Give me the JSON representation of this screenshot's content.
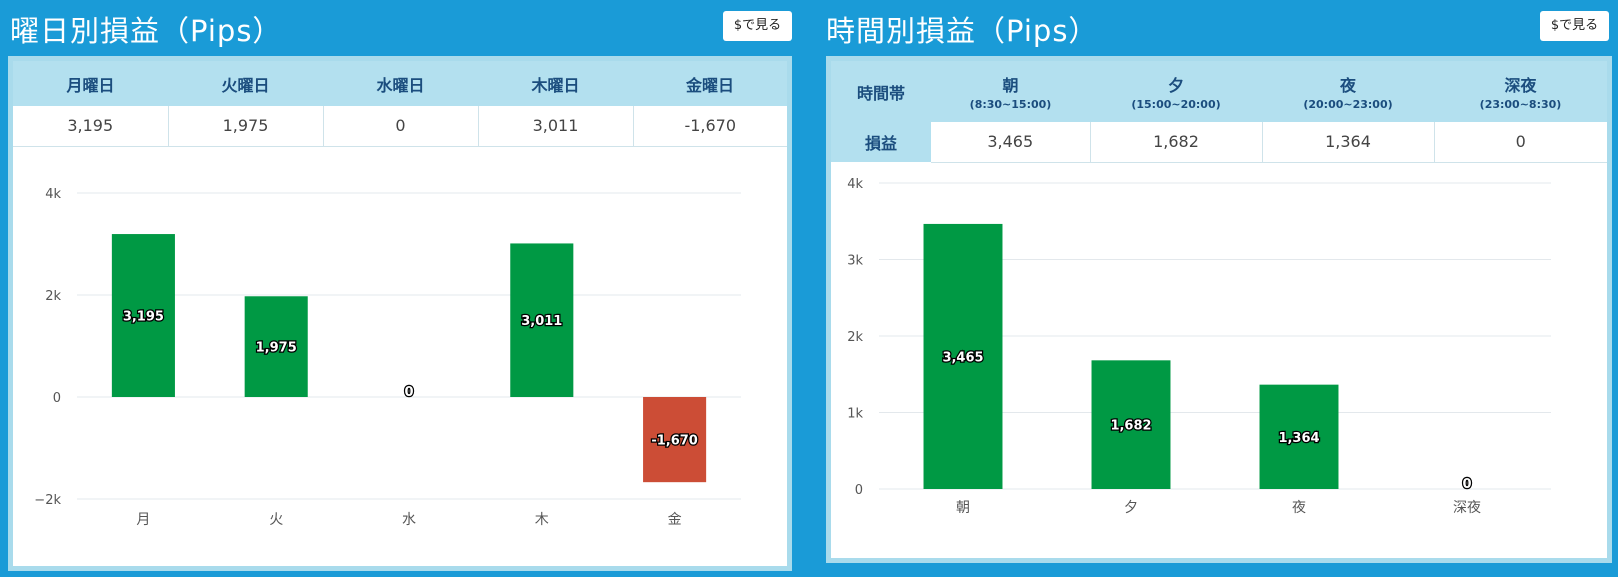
{
  "left": {
    "title": "曜日別損益（Pips）",
    "yen_button": "$で見る",
    "table": {
      "headers": [
        "月曜日",
        "火曜日",
        "水曜日",
        "木曜日",
        "金曜日"
      ],
      "values": [
        "3,195",
        "1,975",
        "0",
        "3,011",
        "-1,670"
      ]
    }
  },
  "right": {
    "title": "時間別損益（Pips）",
    "yen_button": "$で見る",
    "table": {
      "corner": "時間帯",
      "row_label": "損益",
      "headers": [
        {
          "name": "朝",
          "range": "(8:30~15:00)"
        },
        {
          "name": "夕",
          "range": "(15:00~20:00)"
        },
        {
          "name": "夜",
          "range": "(20:00~23:00)"
        },
        {
          "name": "深夜",
          "range": "(23:00~8:30)"
        }
      ],
      "values": [
        "3,465",
        "1,682",
        "1,364",
        "0"
      ]
    }
  },
  "chart_data": [
    {
      "type": "bar",
      "categories": [
        "月",
        "火",
        "水",
        "木",
        "金"
      ],
      "values": [
        3195,
        1975,
        0,
        3011,
        -1670
      ],
      "labels": [
        "3,195",
        "1,975",
        "0",
        "3,011",
        "-1,670"
      ],
      "ylim": [
        -2000,
        4000
      ],
      "yticks": [
        -2000,
        0,
        2000,
        4000
      ],
      "ytick_labels": [
        "−2k",
        "0",
        "2k",
        "4k"
      ],
      "positive_color": "#009944",
      "negative_color": "#cc4d36",
      "grid": true
    },
    {
      "type": "bar",
      "categories": [
        "朝",
        "夕",
        "夜",
        "深夜"
      ],
      "values": [
        3465,
        1682,
        1364,
        0
      ],
      "labels": [
        "3,465",
        "1,682",
        "1,364",
        "0"
      ],
      "ylim": [
        0,
        4000
      ],
      "yticks": [
        0,
        1000,
        2000,
        3000,
        4000
      ],
      "ytick_labels": [
        "0",
        "1k",
        "2k",
        "3k",
        "4k"
      ],
      "positive_color": "#009944",
      "negative_color": "#cc4d36",
      "grid": true
    }
  ]
}
